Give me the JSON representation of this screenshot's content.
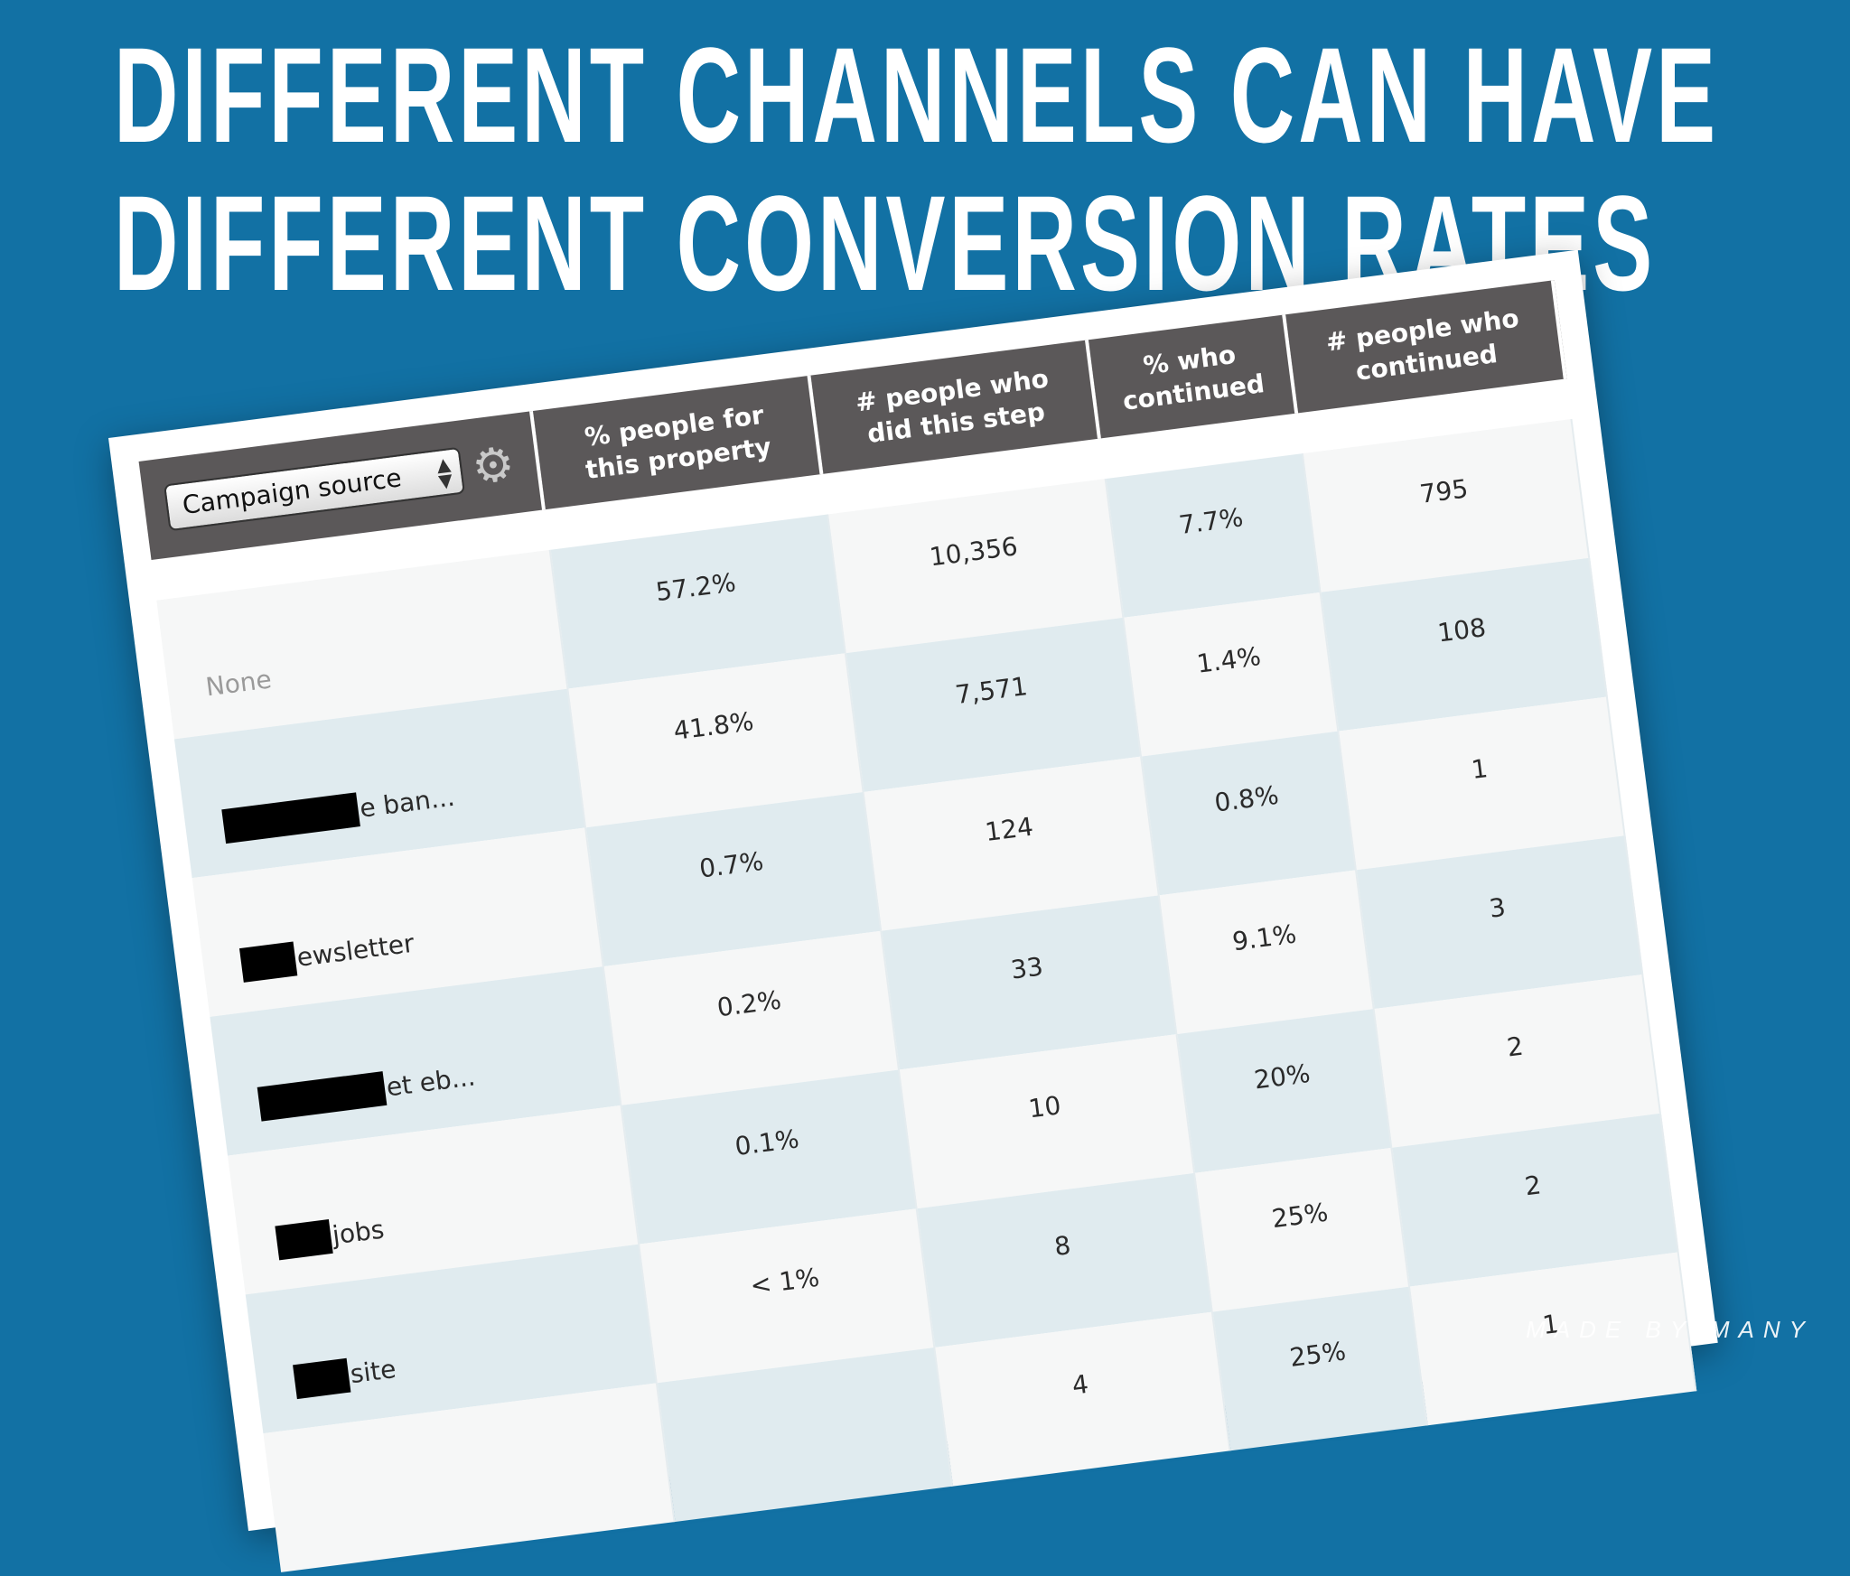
{
  "slide": {
    "title_line_1": "DIFFERENT CHANNELS CAN HAVE",
    "title_line_2": "DIFFERENT CONVERSION RATES",
    "brand": "MADE BY MANY",
    "background_color": "#1271a4"
  },
  "table": {
    "dropdown_value": "Campaign source",
    "headers": [
      "% people for this property",
      "# people who did this step",
      "% who continued",
      "# people who continued"
    ],
    "rows": [
      {
        "source": "None",
        "redacted": false,
        "pct_property": "57.2%",
        "did_step": "10,356",
        "pct_continued": "7.7%",
        "continued": "795"
      },
      {
        "source": "e ban...",
        "redacted": true,
        "pct_property": "41.8%",
        "did_step": "7,571",
        "pct_continued": "1.4%",
        "continued": "108"
      },
      {
        "source": "ewsletter",
        "redacted": true,
        "pct_property": "0.7%",
        "did_step": "124",
        "pct_continued": "0.8%",
        "continued": "1"
      },
      {
        "source": "et eb...",
        "redacted": true,
        "pct_property": "0.2%",
        "did_step": "33",
        "pct_continued": "9.1%",
        "continued": "3"
      },
      {
        "source": "jobs",
        "redacted": true,
        "pct_property": "0.1%",
        "did_step": "10",
        "pct_continued": "20%",
        "continued": "2"
      },
      {
        "source": "site",
        "redacted": true,
        "pct_property": "< 1%",
        "did_step": "8",
        "pct_continued": "25%",
        "continued": "2"
      },
      {
        "source": "",
        "redacted": false,
        "pct_property": "",
        "did_step": "4",
        "pct_continued": "25%",
        "continued": "1"
      }
    ]
  }
}
